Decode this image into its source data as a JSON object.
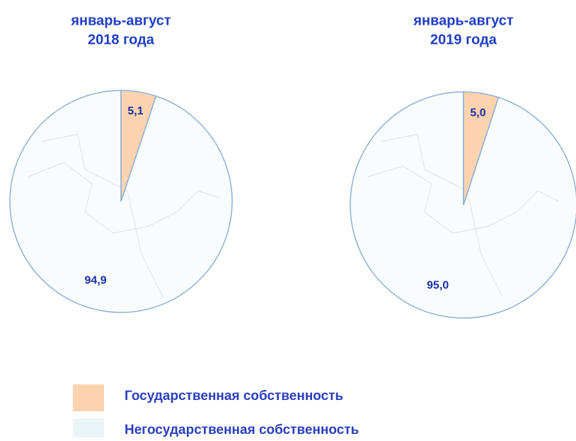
{
  "chart_data": [
    {
      "type": "pie",
      "title": "январь-август",
      "subtitle": "2018 года",
      "values": [
        5.1,
        94.9
      ],
      "value_labels": [
        "5,1",
        "94,9"
      ]
    },
    {
      "type": "pie",
      "title": "январь-август",
      "subtitle": "2019 года",
      "values": [
        5.0,
        95.0
      ],
      "value_labels": [
        "5,0",
        "95,0"
      ]
    }
  ],
  "legend": [
    {
      "name": "Государственная собственность",
      "color": "#fcd3ae"
    },
    {
      "name": "Негосударственная собственность",
      "color": "#eaf5f7"
    }
  ]
}
